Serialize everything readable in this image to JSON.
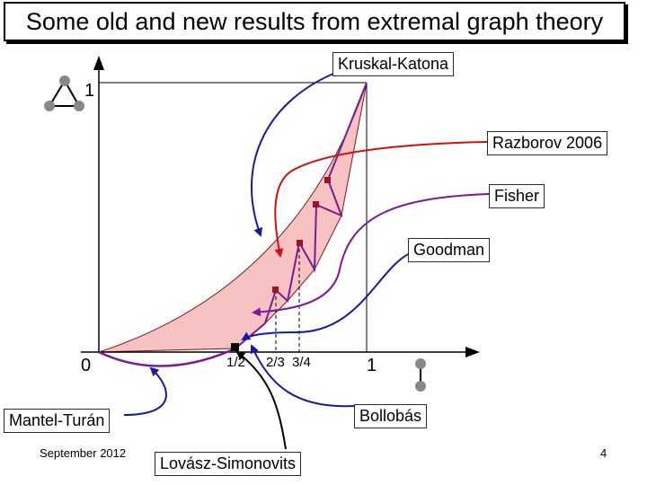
{
  "title": "Some old and new results from extremal graph theory",
  "labels": {
    "kruskal": "Kruskal-Katona",
    "razborov": "Razborov 2006",
    "fisher": "Fisher",
    "goodman": "Goodman",
    "bollobas": "Bollobás",
    "mantel": "Mantel-Turán",
    "lovasz": "Lovász-Simonovits"
  },
  "axis": {
    "y_one": "1",
    "origin": "0",
    "x_one": "1",
    "x_half": "1/2",
    "x_thirds": "2/3",
    "x_quarters": "3/4"
  },
  "footer": {
    "date": "September 2012",
    "page": "4"
  },
  "colors": {
    "region_fill": "#f6c2c2",
    "razborov_curve": "#d01010",
    "fisher_curve": "#7a1a9a",
    "blue_arrow": "#1a1aa0",
    "mark": "#a0102a"
  },
  "icons": [
    "triangle-graph-icon",
    "edge-graph-icon"
  ]
}
